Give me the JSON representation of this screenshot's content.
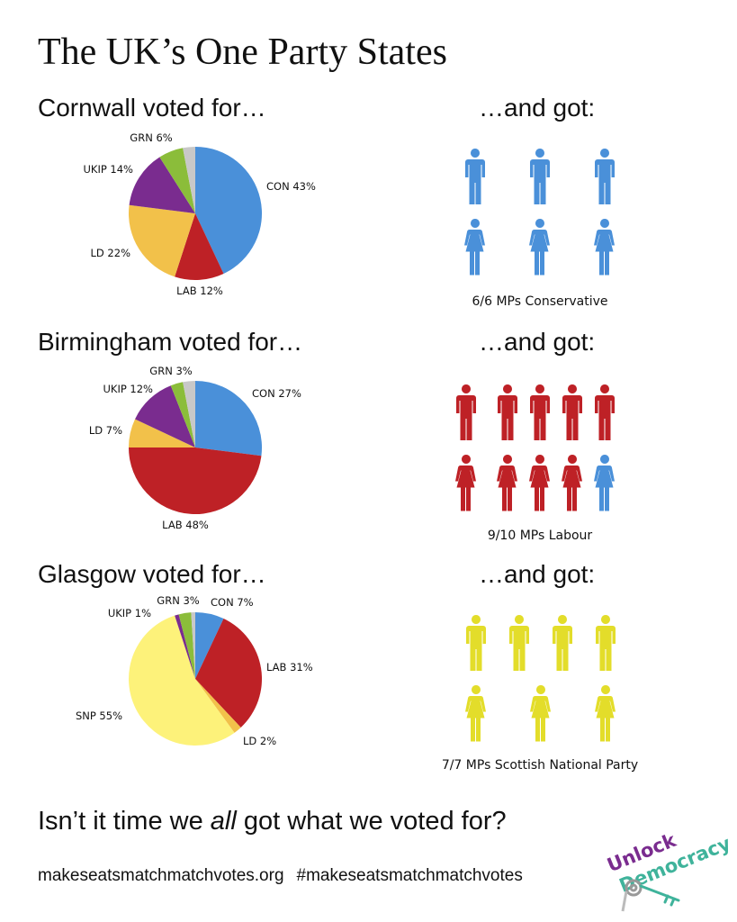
{
  "title": "The UK’s One Party States",
  "got_heading": "…and got:",
  "regions": [
    {
      "heading": "Cornwall voted for…",
      "chart_data": {
        "type": "pie",
        "slices": [
          {
            "label": "CON 43%",
            "party": "CON",
            "value": 43,
            "color": "#4a90d9"
          },
          {
            "label": "LAB 12%",
            "party": "LAB",
            "value": 12,
            "color": "#be2126"
          },
          {
            "label": "LD 22%",
            "party": "LD",
            "value": 22,
            "color": "#f2c14a"
          },
          {
            "label": "UKIP 14%",
            "party": "UKIP",
            "value": 14,
            "color": "#7a2c8f"
          },
          {
            "label": "GRN 6%",
            "party": "GRN",
            "value": 6,
            "color": "#8bbd3a"
          },
          {
            "label": "",
            "party": "other",
            "value": 3,
            "color": "#c8c8c8"
          }
        ]
      },
      "mps": {
        "color": "#4a90d9",
        "rows": [
          [
            "m",
            "m",
            "m"
          ],
          [
            "f",
            "f",
            "f"
          ]
        ],
        "caption": "6/6 MPs Conservative"
      }
    },
    {
      "heading": "Birmingham voted for…",
      "chart_data": {
        "type": "pie",
        "slices": [
          {
            "label": "CON 27%",
            "party": "CON",
            "value": 27,
            "color": "#4a90d9"
          },
          {
            "label": "LAB 48%",
            "party": "LAB",
            "value": 48,
            "color": "#be2126"
          },
          {
            "label": "LD 7%",
            "party": "LD",
            "value": 7,
            "color": "#f2c14a"
          },
          {
            "label": "UKIP 12%",
            "party": "UKIP",
            "value": 12,
            "color": "#7a2c8f"
          },
          {
            "label": "GRN 3%",
            "party": "GRN",
            "value": 3,
            "color": "#8bbd3a"
          },
          {
            "label": "",
            "party": "other",
            "value": 3,
            "color": "#c8c8c8"
          }
        ]
      },
      "mps": {
        "rows": [
          [
            {
              "g": "m",
              "c": "#be2126"
            },
            {
              "g": "m",
              "c": "#be2126"
            },
            {
              "g": "m",
              "c": "#be2126"
            },
            {
              "g": "m",
              "c": "#be2126"
            },
            {
              "g": "m",
              "c": "#be2126"
            }
          ],
          [
            {
              "g": "f",
              "c": "#be2126"
            },
            {
              "g": "f",
              "c": "#be2126"
            },
            {
              "g": "f",
              "c": "#be2126"
            },
            {
              "g": "f",
              "c": "#be2126"
            },
            {
              "g": "f",
              "c": "#4a90d9"
            }
          ]
        ],
        "caption": "9/10 MPs Labour"
      }
    },
    {
      "heading": "Glasgow voted for…",
      "chart_data": {
        "type": "pie",
        "slices": [
          {
            "label": "CON 7%",
            "party": "CON",
            "value": 7,
            "color": "#4a90d9"
          },
          {
            "label": "LAB 31%",
            "party": "LAB",
            "value": 31,
            "color": "#be2126"
          },
          {
            "label": "LD 2%",
            "party": "LD",
            "value": 2,
            "color": "#f2c14a"
          },
          {
            "label": "SNP 55%",
            "party": "SNP",
            "value": 55,
            "color": "#fdf27a"
          },
          {
            "label": "UKIP 1%",
            "party": "UKIP",
            "value": 1,
            "color": "#7a2c8f"
          },
          {
            "label": "GRN 3%",
            "party": "GRN",
            "value": 3,
            "color": "#8bbd3a"
          },
          {
            "label": "",
            "party": "other",
            "value": 1,
            "color": "#c8c8c8"
          }
        ]
      },
      "mps": {
        "color": "#e3dd2a",
        "rows": [
          [
            "m",
            "m",
            "m",
            "m"
          ],
          [
            "f",
            "f",
            "f"
          ]
        ],
        "caption": "7/7 MPs Scottish National Party"
      }
    }
  ],
  "tagline": {
    "before": "Isn’t it time we ",
    "emphasis": "all",
    "after": " got what we voted for?"
  },
  "footer": {
    "url": "makeseatsmatchmatchvotes.org",
    "hashtag": "#makeseatsmatchmatchvotes"
  },
  "logo": {
    "line1": "Unlock",
    "line2": "Democracy",
    "icon": "key-icon",
    "color1": "#7a2c8f",
    "color2": "#3fb39b"
  }
}
